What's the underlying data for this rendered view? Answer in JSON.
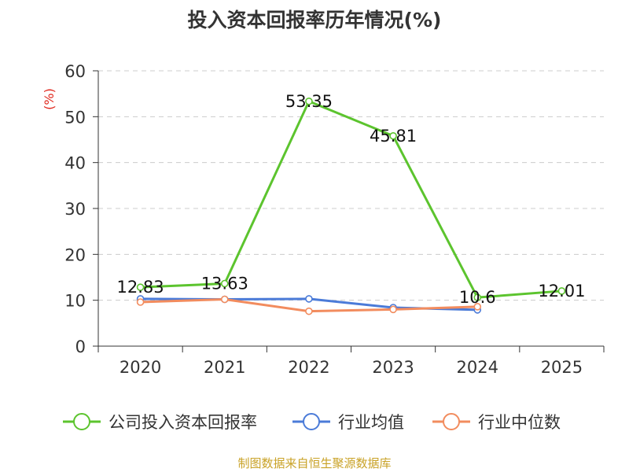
{
  "title": "投入资本回报率历年情况(%)",
  "source": "制图数据来自恒生聚源数据库",
  "colors": {
    "company": "#5cc42e",
    "industry_avg": "#4b7bd8",
    "industry_median": "#f28c5e",
    "unit_label": "#e0281e",
    "source": "#c9a227",
    "grid": "#cccccc",
    "axis": "#333333"
  },
  "chart_data": {
    "type": "line",
    "title": "投入资本回报率历年情况(%)",
    "ylabel": "(%)",
    "ylim": [
      0,
      60
    ],
    "yticks": [
      0,
      10,
      20,
      30,
      40,
      50,
      60
    ],
    "categories": [
      "2020",
      "2021",
      "2022",
      "2023",
      "2024",
      "2025"
    ],
    "grid": true,
    "legend_position": "bottom",
    "series": [
      {
        "name": "公司投入资本回报率",
        "color": "#5cc42e",
        "values": [
          12.83,
          13.63,
          53.35,
          45.81,
          10.6,
          12.01
        ],
        "labels": [
          "12.83",
          "13.63",
          "53.35",
          "45.81",
          "10.6",
          "12.01"
        ]
      },
      {
        "name": "行业均值",
        "color": "#4b7bd8",
        "values": [
          10.3,
          10.2,
          10.3,
          8.4,
          7.9,
          null
        ]
      },
      {
        "name": "行业中位数",
        "color": "#f28c5e",
        "values": [
          9.6,
          10.2,
          7.6,
          8.0,
          8.6,
          null
        ]
      }
    ]
  }
}
